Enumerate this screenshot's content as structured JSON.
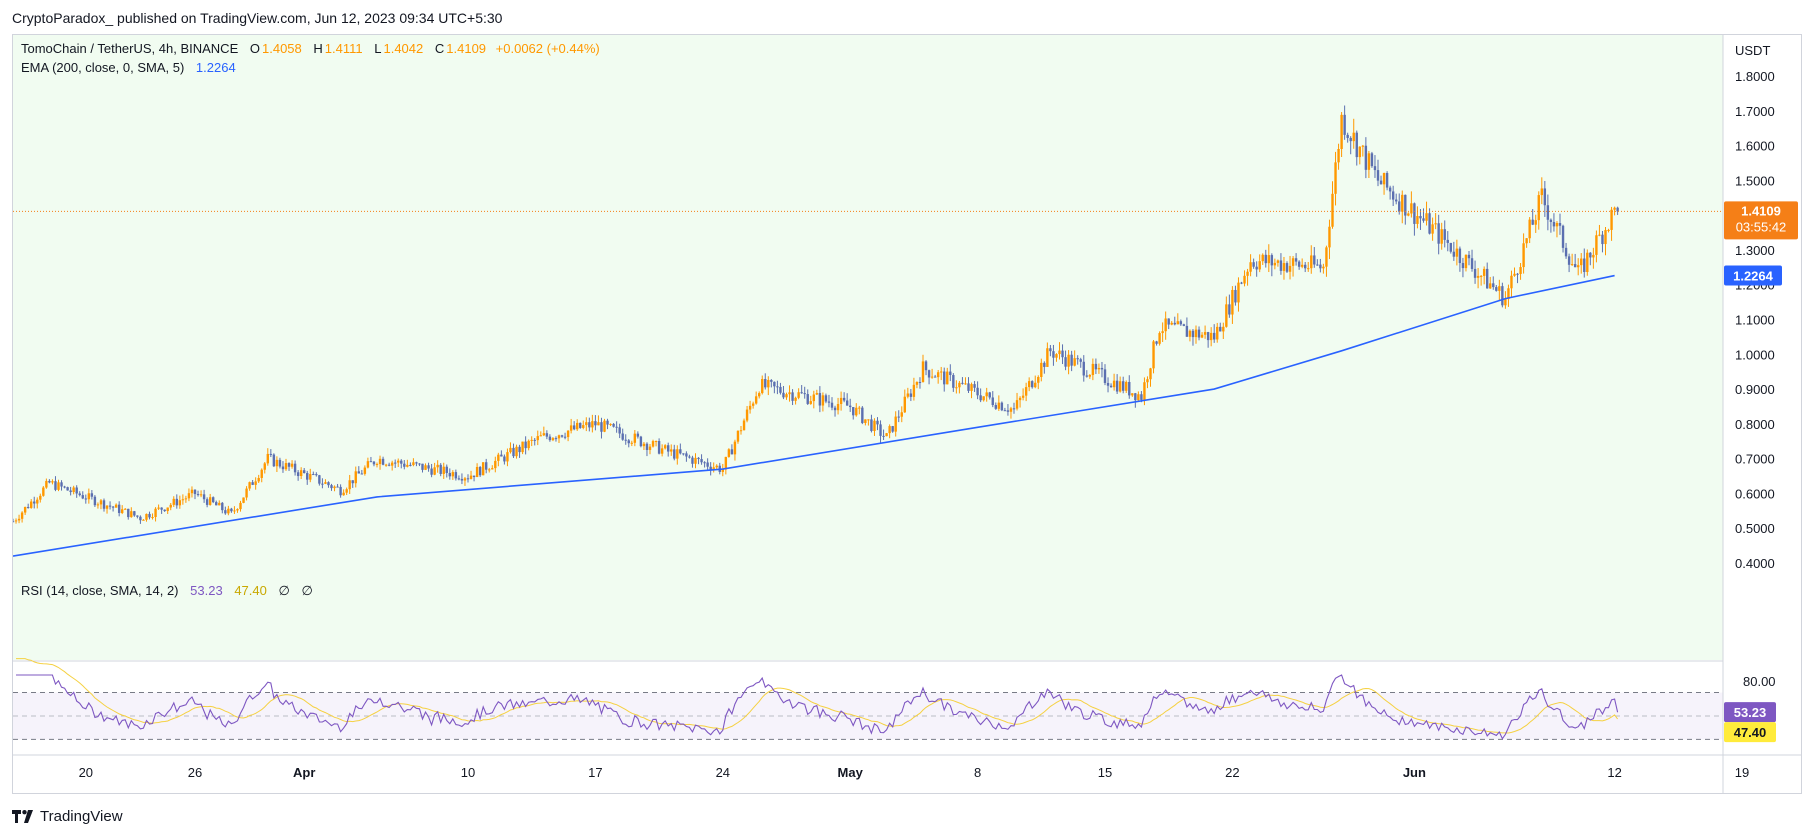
{
  "header": {
    "published_note": "CryptoParadox_ published on TradingView.com, Jun 12, 2023 09:34 UTC+5:30"
  },
  "legend": {
    "symbol": "TomoChain / TetherUS, 4h, BINANCE",
    "open_label": "O",
    "open": "1.4058",
    "high_label": "H",
    "high": "1.4111",
    "low_label": "L",
    "low": "1.4042",
    "close_label": "C",
    "close": "1.4109",
    "change": "+0.0062 (+0.44%)",
    "ema_label": "EMA (200, close, 0, SMA, 5)",
    "ema_value": "1.2264",
    "rsi_label": "RSI (14, close, SMA, 14, 2)",
    "rsi_value": "53.23",
    "rsi_ma_value": "47.40",
    "rsi_extra1": "∅",
    "rsi_extra2": "∅"
  },
  "price_axis": {
    "currency": "USDT",
    "ticks": [
      "1.8000",
      "1.7000",
      "1.6000",
      "1.5000",
      "1.3000",
      "1.2000",
      "1.1000",
      "1.0000",
      "0.9000",
      "0.8000",
      "0.7000",
      "0.6000",
      "0.5000",
      "0.4000"
    ],
    "current_price": "1.4109",
    "countdown": "03:55:42",
    "ema_badge": "1.2264"
  },
  "rsi_axis": {
    "top_tick": "80.00",
    "rsi_badge": "53.23",
    "ma_badge": "47.40"
  },
  "time_axis": {
    "ticks": [
      "20",
      "26",
      "Apr",
      "10",
      "17",
      "24",
      "May",
      "8",
      "15",
      "22",
      "Jun",
      "12",
      "19"
    ]
  },
  "colors": {
    "up_candle": "#ff9800",
    "down_candle": "#5b6fb0",
    "ema": "#2962ff",
    "rsi": "#7e57c2",
    "rsi_ma": "#f5d142",
    "price_bg": "#f1fcf1",
    "price_badge": "#f57f17",
    "ema_badge": "#2962ff",
    "rsi_badge": "#7e57c2",
    "rsi_ma_badge": "#ffeb3b"
  },
  "chart_data": {
    "type": "candlestick",
    "title": "TomoChain / TetherUS, 4h, BINANCE",
    "ylabel": "USDT",
    "ylim": [
      0.4,
      1.85
    ],
    "x_ticks": [
      "20",
      "26",
      "Apr",
      "10",
      "17",
      "24",
      "May",
      "8",
      "15",
      "22",
      "Jun",
      "12",
      "19"
    ],
    "approx_close_path": [
      {
        "date": "Mar 16",
        "close": 0.52
      },
      {
        "date": "Mar 18",
        "close": 0.63
      },
      {
        "date": "Mar 23",
        "close": 0.53
      },
      {
        "date": "Mar 26",
        "close": 0.6
      },
      {
        "date": "Mar 28",
        "close": 0.54
      },
      {
        "date": "Mar 30",
        "close": 0.7
      },
      {
        "date": "Apr 3",
        "close": 0.61
      },
      {
        "date": "Apr 5",
        "close": 0.7
      },
      {
        "date": "Apr 10",
        "close": 0.65
      },
      {
        "date": "Apr 14",
        "close": 0.76
      },
      {
        "date": "Apr 17",
        "close": 0.8
      },
      {
        "date": "Apr 21",
        "close": 0.72
      },
      {
        "date": "Apr 24",
        "close": 0.67
      },
      {
        "date": "Apr 26",
        "close": 0.91
      },
      {
        "date": "May 1",
        "close": 0.85
      },
      {
        "date": "May 3",
        "close": 0.76
      },
      {
        "date": "May 5",
        "close": 0.96
      },
      {
        "date": "May 10",
        "close": 0.84
      },
      {
        "date": "May 12",
        "close": 1.01
      },
      {
        "date": "May 17",
        "close": 0.88
      },
      {
        "date": "May 18",
        "close": 1.08
      },
      {
        "date": "May 21",
        "close": 1.05
      },
      {
        "date": "May 23",
        "close": 1.27
      },
      {
        "date": "May 27",
        "close": 1.25
      },
      {
        "date": "May 28",
        "close": 1.68
      },
      {
        "date": "May 30",
        "close": 1.5
      },
      {
        "date": "Jun 2",
        "close": 1.36
      },
      {
        "date": "Jun 6",
        "close": 1.16
      },
      {
        "date": "Jun 8",
        "close": 1.45
      },
      {
        "date": "Jun 10",
        "close": 1.23
      },
      {
        "date": "Jun 12",
        "close": 1.4109
      }
    ],
    "ema": {
      "name": "EMA (200, close, 0, SMA, 5)",
      "points": [
        {
          "date": "Mar 16",
          "value": 0.42
        },
        {
          "date": "Apr 5",
          "value": 0.59
        },
        {
          "date": "Apr 24",
          "value": 0.67
        },
        {
          "date": "May 8",
          "value": 0.79
        },
        {
          "date": "May 21",
          "value": 0.9
        },
        {
          "date": "May 28",
          "value": 1.01
        },
        {
          "date": "Jun 6",
          "value": 1.16
        },
        {
          "date": "Jun 12",
          "value": 1.2264
        }
      ]
    },
    "rsi": {
      "name": "RSI (14, close, SMA, 14, 2)",
      "value": 53.23,
      "ma": 47.4,
      "bands": [
        70,
        50,
        30
      ],
      "top_tick": 80.0
    }
  }
}
